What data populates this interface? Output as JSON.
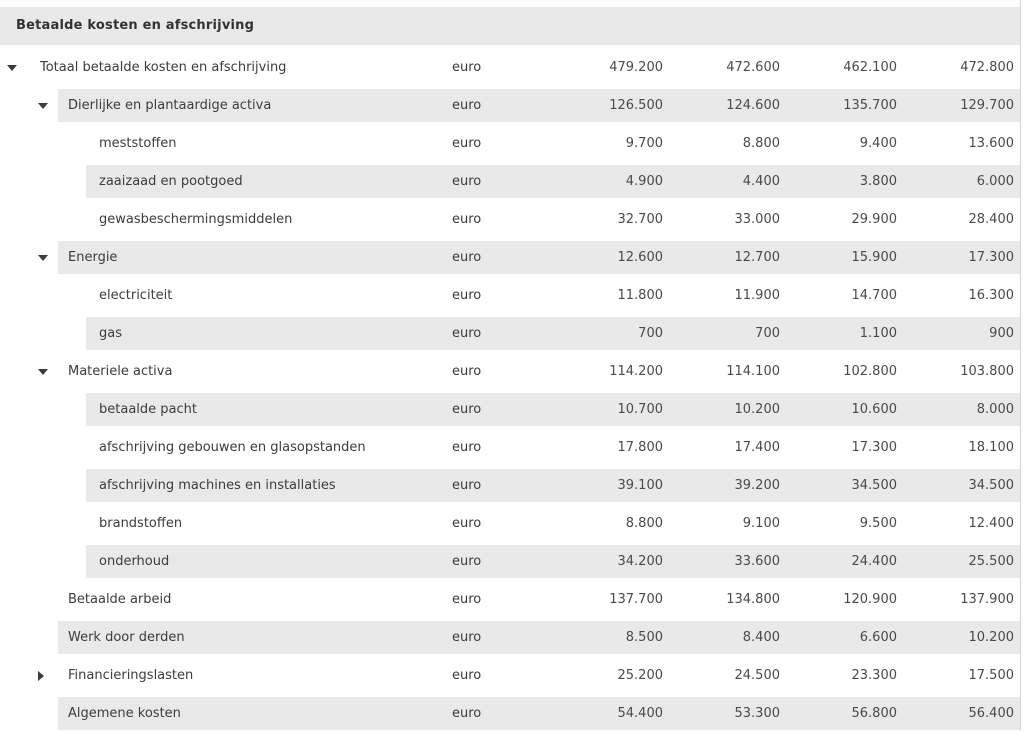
{
  "header": {
    "title": "Betaalde kosten en afschrijving"
  },
  "table": {
    "unit_label": "euro",
    "rows": [
      {
        "label": "Totaal betaalde kosten en afschrijving",
        "level": 0,
        "toggle": "expanded",
        "unit": "euro",
        "values": [
          "479.200",
          "472.600",
          "462.100",
          "472.800"
        ]
      },
      {
        "label": "Dierlijke en plantaardige activa",
        "level": 1,
        "toggle": "expanded",
        "unit": "euro",
        "values": [
          "126.500",
          "124.600",
          "135.700",
          "129.700"
        ]
      },
      {
        "label": "meststoffen",
        "level": 2,
        "toggle": "none",
        "unit": "euro",
        "values": [
          "9.700",
          "8.800",
          "9.400",
          "13.600"
        ]
      },
      {
        "label": "zaaizaad en pootgoed",
        "level": 2,
        "toggle": "none",
        "unit": "euro",
        "values": [
          "4.900",
          "4.400",
          "3.800",
          "6.000"
        ]
      },
      {
        "label": "gewasbeschermingsmiddelen",
        "level": 2,
        "toggle": "none",
        "unit": "euro",
        "values": [
          "32.700",
          "33.000",
          "29.900",
          "28.400"
        ]
      },
      {
        "label": "Energie",
        "level": 1,
        "toggle": "expanded",
        "unit": "euro",
        "values": [
          "12.600",
          "12.700",
          "15.900",
          "17.300"
        ]
      },
      {
        "label": "electriciteit",
        "level": 2,
        "toggle": "none",
        "unit": "euro",
        "values": [
          "11.800",
          "11.900",
          "14.700",
          "16.300"
        ]
      },
      {
        "label": "gas",
        "level": 2,
        "toggle": "none",
        "unit": "euro",
        "values": [
          "700",
          "700",
          "1.100",
          "900"
        ]
      },
      {
        "label": "Materiele activa",
        "level": 1,
        "toggle": "expanded",
        "unit": "euro",
        "values": [
          "114.200",
          "114.100",
          "102.800",
          "103.800"
        ]
      },
      {
        "label": "betaalde pacht",
        "level": 2,
        "toggle": "none",
        "unit": "euro",
        "values": [
          "10.700",
          "10.200",
          "10.600",
          "8.000"
        ]
      },
      {
        "label": "afschrijving gebouwen en glasopstanden",
        "level": 2,
        "toggle": "none",
        "unit": "euro",
        "values": [
          "17.800",
          "17.400",
          "17.300",
          "18.100"
        ]
      },
      {
        "label": "afschrijving machines en installaties",
        "level": 2,
        "toggle": "none",
        "unit": "euro",
        "values": [
          "39.100",
          "39.200",
          "34.500",
          "34.500"
        ]
      },
      {
        "label": "brandstoffen",
        "level": 2,
        "toggle": "none",
        "unit": "euro",
        "values": [
          "8.800",
          "9.100",
          "9.500",
          "12.400"
        ]
      },
      {
        "label": "onderhoud",
        "level": 2,
        "toggle": "none",
        "unit": "euro",
        "values": [
          "34.200",
          "33.600",
          "24.400",
          "25.500"
        ]
      },
      {
        "label": "Betaalde arbeid",
        "level": 1,
        "toggle": "none",
        "unit": "euro",
        "values": [
          "137.700",
          "134.800",
          "120.900",
          "137.900"
        ]
      },
      {
        "label": "Werk door derden",
        "level": 1,
        "toggle": "none",
        "unit": "euro",
        "values": [
          "8.500",
          "8.400",
          "6.600",
          "10.200"
        ]
      },
      {
        "label": "Financieringslasten",
        "level": 1,
        "toggle": "collapsed",
        "unit": "euro",
        "values": [
          "25.200",
          "24.500",
          "23.300",
          "17.500"
        ]
      },
      {
        "label": "Algemene kosten",
        "level": 1,
        "toggle": "none",
        "unit": "euro",
        "values": [
          "54.400",
          "53.300",
          "56.800",
          "56.400"
        ]
      }
    ]
  },
  "colors": {
    "row_band_gray": "#e9e9e9",
    "header_bar_gray": "#e9e9e9",
    "text": "#3c3c3c",
    "value_text": "#4a4a4a",
    "right_border": "#d6d6d6",
    "triangle": "#3c3c3c"
  }
}
